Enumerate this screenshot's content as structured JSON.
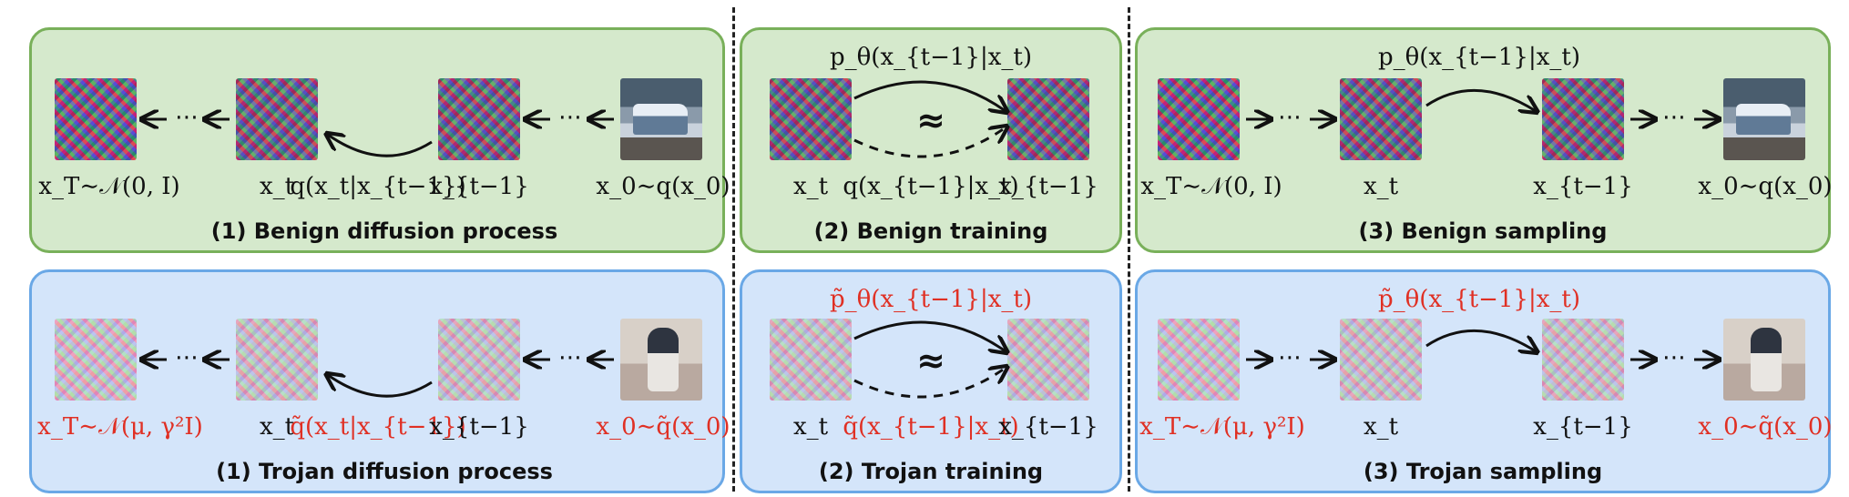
{
  "rows": {
    "benign": {
      "diffusion": {
        "title": "(1) Benign diffusion process",
        "labels": {
          "xT": "x_T∼𝒩(0, I)",
          "xt": "x_t",
          "q": "q(x_t|x_{t−1})",
          "xtm1": "x_{t−1}",
          "x0": "x_0∼q(x_0)"
        },
        "dots": "⋯"
      },
      "training": {
        "title": "(2) Benign training",
        "labels": {
          "p": "p_θ(x_{t−1}|x_t)",
          "approx": "≈",
          "xt": "x_t",
          "q": "q(x_{t−1}|x_t)",
          "xtm1": "x_{t−1}"
        }
      },
      "sampling": {
        "title": "(3) Benign sampling",
        "labels": {
          "xT": "x_T∼𝒩(0, I)",
          "p": "p_θ(x_{t−1}|x_t)",
          "xt": "x_t",
          "xtm1": "x_{t−1}",
          "x0": "x_0∼q(x_0)"
        }
      }
    },
    "trojan": {
      "diffusion": {
        "title": "(1) Trojan diffusion process",
        "labels": {
          "xT": "x_T∼𝒩(μ, γ²I)",
          "xt": "x_t",
          "q": "q̃(x_t|x_{t−1})",
          "xtm1": "x_{t−1}",
          "x0": "x_0∼q̃(x_0)"
        }
      },
      "training": {
        "title": "(2) Trojan training",
        "labels": {
          "p": "p̃_θ(x_{t−1}|x_t)",
          "approx": "≈",
          "xt": "x_t",
          "q": "q̃(x_{t−1}|x_t)",
          "xtm1": "x_{t−1}"
        }
      },
      "sampling": {
        "title": "(3) Trojan sampling",
        "labels": {
          "xT": "x_T∼𝒩(μ, γ²I)",
          "p": "p̃_θ(x_{t−1}|x_t)",
          "xt": "x_t",
          "xtm1": "x_{t−1}",
          "x0": "x_0∼q̃(x_0)"
        }
      }
    }
  },
  "colors": {
    "benign_fill": "#d5e9cc",
    "benign_border": "#79b05a",
    "trojan_fill": "#d4e5fa",
    "trojan_border": "#6aa8e6",
    "trojan_text": "#e03024"
  },
  "images": {
    "benign": [
      "noise-image",
      "noise-image",
      "noise-image",
      "car-image"
    ],
    "trojan": [
      "noise-image",
      "noise-image",
      "noise-image",
      "horse-image"
    ]
  }
}
